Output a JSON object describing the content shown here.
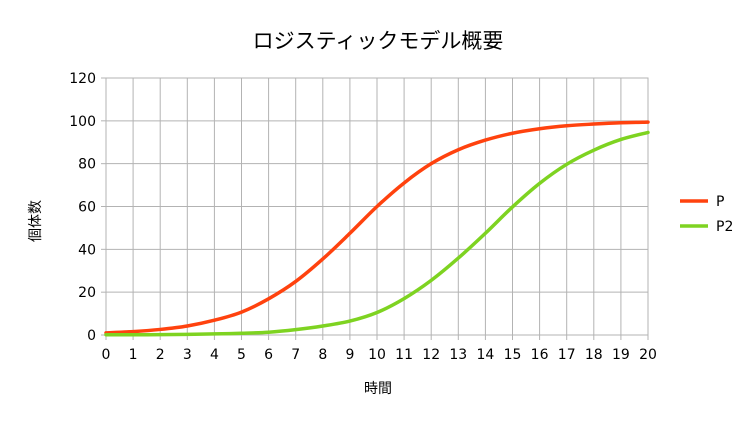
{
  "chart_data": {
    "type": "line",
    "title": "ロジスティックモデル概要",
    "xlabel": "時間",
    "ylabel": "個体数",
    "xlim": [
      0,
      20
    ],
    "ylim": [
      0,
      120
    ],
    "x_ticks": [
      "0",
      "1",
      "2",
      "3",
      "4",
      "5",
      "6",
      "7",
      "8",
      "9",
      "10",
      "11",
      "12",
      "13",
      "14",
      "15",
      "16",
      "17",
      "18",
      "19",
      "20"
    ],
    "y_ticks": [
      "0",
      "20",
      "40",
      "60",
      "80",
      "100",
      "120"
    ],
    "grid": true,
    "legend_position": "right",
    "x": [
      0,
      1,
      2,
      3,
      4,
      5,
      6,
      7,
      8,
      9,
      10,
      11,
      12,
      13,
      14,
      15,
      16,
      17,
      18,
      19,
      20
    ],
    "series": [
      {
        "name": "P",
        "color": "#ff420e",
        "values": [
          1.0,
          1.6,
          2.6,
          4.2,
          6.9,
          10.7,
          16.9,
          25.0,
          35.5,
          47.5,
          60.0,
          71.0,
          80.0,
          86.5,
          91.0,
          94.2,
          96.3,
          97.7,
          98.5,
          99.1,
          99.4
        ]
      },
      {
        "name": "P2",
        "color": "#7ed321",
        "values": [
          0.1,
          0.1,
          0.2,
          0.3,
          0.5,
          0.8,
          1.3,
          2.5,
          4.2,
          6.5,
          10.5,
          17.0,
          25.5,
          35.9,
          47.5,
          59.8,
          70.8,
          79.7,
          86.3,
          91.3,
          94.6
        ]
      }
    ]
  }
}
